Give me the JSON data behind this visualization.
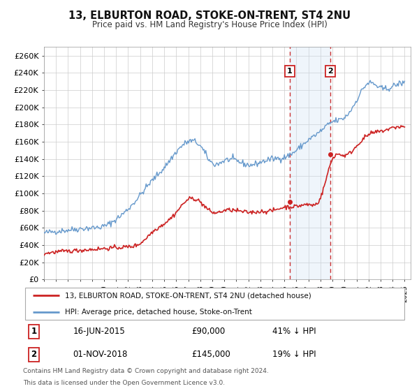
{
  "title": "13, ELBURTON ROAD, STOKE-ON-TRENT, ST4 2NU",
  "subtitle": "Price paid vs. HM Land Registry's House Price Index (HPI)",
  "xlim": [
    1995.0,
    2025.5
  ],
  "ylim": [
    0,
    270000
  ],
  "yticks": [
    0,
    20000,
    40000,
    60000,
    80000,
    100000,
    120000,
    140000,
    160000,
    180000,
    200000,
    220000,
    240000,
    260000
  ],
  "ytick_labels": [
    "£0",
    "£20K",
    "£40K",
    "£60K",
    "£80K",
    "£100K",
    "£120K",
    "£140K",
    "£160K",
    "£180K",
    "£200K",
    "£220K",
    "£240K",
    "£260K"
  ],
  "xticks": [
    1995,
    1996,
    1997,
    1998,
    1999,
    2000,
    2001,
    2002,
    2003,
    2004,
    2005,
    2006,
    2007,
    2008,
    2009,
    2010,
    2011,
    2012,
    2013,
    2014,
    2015,
    2016,
    2017,
    2018,
    2019,
    2020,
    2021,
    2022,
    2023,
    2024,
    2025
  ],
  "hpi_color": "#6699cc",
  "price_color": "#cc2222",
  "marker_color": "#cc2222",
  "vline_color": "#cc3333",
  "shade_color": "#cce0f5",
  "grid_color": "#cccccc",
  "background_color": "#ffffff",
  "sale1_x": 2015.45,
  "sale1_y": 90000,
  "sale2_x": 2018.83,
  "sale2_y": 145000,
  "annotation1": [
    "1",
    "16-JUN-2015",
    "£90,000",
    "41% ↓ HPI"
  ],
  "annotation2": [
    "2",
    "01-NOV-2018",
    "£145,000",
    "19% ↓ HPI"
  ],
  "footer1": "Contains HM Land Registry data © Crown copyright and database right 2024.",
  "footer2": "This data is licensed under the Open Government Licence v3.0.",
  "legend1": "13, ELBURTON ROAD, STOKE-ON-TRENT, ST4 2NU (detached house)",
  "legend2": "HPI: Average price, detached house, Stoke-on-Trent"
}
